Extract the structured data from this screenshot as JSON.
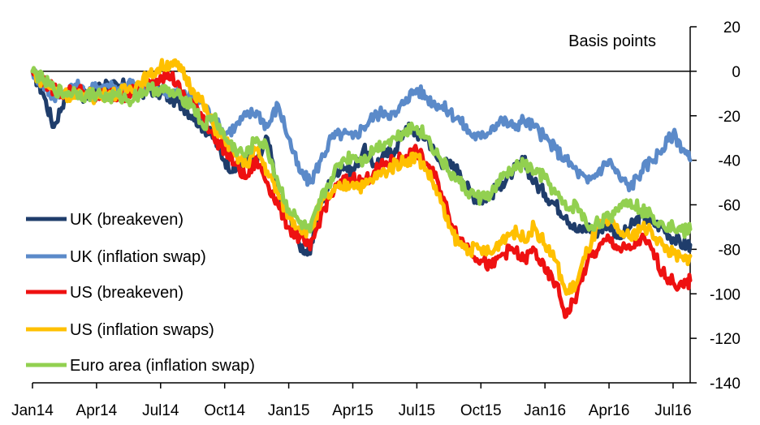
{
  "chart_data": {
    "type": "line",
    "title": "",
    "ylabel": "Basis points",
    "xlabel": "",
    "ylim": [
      -140,
      20
    ],
    "yticks": [
      20,
      0,
      -20,
      -40,
      -60,
      -80,
      -100,
      -120,
      -140
    ],
    "ytick_labels": [
      "20",
      "0",
      "-20",
      "-40",
      "-60",
      "-80",
      "-100",
      "-120",
      "-140"
    ],
    "xticks": [
      {
        "label": "Jan14",
        "t": 0
      },
      {
        "label": "Apr14",
        "t": 3
      },
      {
        "label": "Jul14",
        "t": 6
      },
      {
        "label": "Oct14",
        "t": 9
      },
      {
        "label": "Jan15",
        "t": 12
      },
      {
        "label": "Apr15",
        "t": 15
      },
      {
        "label": "Jul15",
        "t": 18
      },
      {
        "label": "Oct15",
        "t": 21
      },
      {
        "label": "Jan16",
        "t": 24
      },
      {
        "label": "Apr16",
        "t": 27
      },
      {
        "label": "Jul16",
        "t": 30
      }
    ],
    "xlim": [
      0,
      30.8
    ],
    "x_unit": "months since Jan 2014",
    "legend_position": "left",
    "series": [
      {
        "name": "UK (breakeven)",
        "color": "#1f3d6b",
        "points": [
          [
            0,
            0
          ],
          [
            0.5,
            -10
          ],
          [
            1,
            -25
          ],
          [
            1.5,
            -12
          ],
          [
            2,
            -8
          ],
          [
            2.5,
            -12
          ],
          [
            3,
            -8
          ],
          [
            3.5,
            -5
          ],
          [
            4,
            -8
          ],
          [
            4.5,
            -5
          ],
          [
            5,
            -10
          ],
          [
            5.5,
            -8
          ],
          [
            6,
            -10
          ],
          [
            6.5,
            -12
          ],
          [
            7,
            -15
          ],
          [
            7.5,
            -20
          ],
          [
            8,
            -25
          ],
          [
            8.5,
            -30
          ],
          [
            9,
            -40
          ],
          [
            9.5,
            -45
          ],
          [
            10,
            -38
          ],
          [
            10.5,
            -42
          ],
          [
            11,
            -30
          ],
          [
            11.5,
            -55
          ],
          [
            12,
            -65
          ],
          [
            12.5,
            -78
          ],
          [
            13,
            -82
          ],
          [
            13.5,
            -60
          ],
          [
            14,
            -48
          ],
          [
            14.5,
            -42
          ],
          [
            15,
            -45
          ],
          [
            15.5,
            -35
          ],
          [
            16,
            -42
          ],
          [
            16.5,
            -38
          ],
          [
            17,
            -35
          ],
          [
            17.5,
            -25
          ],
          [
            18,
            -28
          ],
          [
            18.5,
            -30
          ],
          [
            19,
            -40
          ],
          [
            19.5,
            -42
          ],
          [
            20,
            -45
          ],
          [
            20.5,
            -55
          ],
          [
            21,
            -58
          ],
          [
            21.5,
            -55
          ],
          [
            22,
            -50
          ],
          [
            22.5,
            -45
          ],
          [
            23,
            -40
          ],
          [
            23.5,
            -50
          ],
          [
            24,
            -55
          ],
          [
            24.5,
            -60
          ],
          [
            25,
            -65
          ],
          [
            25.5,
            -72
          ],
          [
            26,
            -70
          ],
          [
            26.5,
            -72
          ],
          [
            27,
            -68
          ],
          [
            27.5,
            -75
          ],
          [
            28,
            -70
          ],
          [
            28.5,
            -65
          ],
          [
            29,
            -68
          ],
          [
            29.5,
            -70
          ],
          [
            30,
            -75
          ],
          [
            30.5,
            -78
          ],
          [
            30.8,
            -78
          ]
        ]
      },
      {
        "name": "UK (inflation swap)",
        "color": "#5b8ac9",
        "points": [
          [
            0,
            0
          ],
          [
            0.5,
            -6
          ],
          [
            1,
            -12
          ],
          [
            1.5,
            -9
          ],
          [
            2,
            -6
          ],
          [
            2.5,
            -10
          ],
          [
            3,
            -7
          ],
          [
            3.5,
            -6
          ],
          [
            4,
            -8
          ],
          [
            4.5,
            -5
          ],
          [
            5,
            -8
          ],
          [
            5.5,
            -6
          ],
          [
            6,
            -8
          ],
          [
            6.5,
            -9
          ],
          [
            7,
            -10
          ],
          [
            7.5,
            -12
          ],
          [
            8,
            -15
          ],
          [
            8.5,
            -22
          ],
          [
            9,
            -28
          ],
          [
            9.5,
            -25
          ],
          [
            10,
            -20
          ],
          [
            10.5,
            -18
          ],
          [
            11,
            -25
          ],
          [
            11.5,
            -15
          ],
          [
            12,
            -30
          ],
          [
            12.5,
            -45
          ],
          [
            13,
            -50
          ],
          [
            13.5,
            -40
          ],
          [
            14,
            -30
          ],
          [
            14.5,
            -28
          ],
          [
            15,
            -30
          ],
          [
            15.5,
            -25
          ],
          [
            16,
            -20
          ],
          [
            16.5,
            -18
          ],
          [
            17,
            -20
          ],
          [
            17.5,
            -12
          ],
          [
            18,
            -8
          ],
          [
            18.5,
            -12
          ],
          [
            19,
            -15
          ],
          [
            19.5,
            -18
          ],
          [
            20,
            -22
          ],
          [
            20.5,
            -28
          ],
          [
            21,
            -30
          ],
          [
            21.5,
            -25
          ],
          [
            22,
            -22
          ],
          [
            22.5,
            -25
          ],
          [
            23,
            -22
          ],
          [
            23.5,
            -25
          ],
          [
            24,
            -30
          ],
          [
            24.5,
            -35
          ],
          [
            25,
            -40
          ],
          [
            25.5,
            -45
          ],
          [
            26,
            -50
          ],
          [
            26.5,
            -45
          ],
          [
            27,
            -40
          ],
          [
            27.5,
            -48
          ],
          [
            28,
            -52
          ],
          [
            28.5,
            -45
          ],
          [
            29,
            -40
          ],
          [
            29.5,
            -35
          ],
          [
            30,
            -28
          ],
          [
            30.5,
            -35
          ],
          [
            30.8,
            -40
          ]
        ]
      },
      {
        "name": "US (breakeven)",
        "color": "#ee1111",
        "points": [
          [
            0,
            0
          ],
          [
            0.5,
            -5
          ],
          [
            1,
            -8
          ],
          [
            1.5,
            -10
          ],
          [
            2,
            -8
          ],
          [
            2.5,
            -10
          ],
          [
            3,
            -12
          ],
          [
            3.5,
            -10
          ],
          [
            4,
            -12
          ],
          [
            4.5,
            -10
          ],
          [
            5,
            -8
          ],
          [
            5.5,
            -5
          ],
          [
            6,
            -2
          ],
          [
            6.5,
            -2
          ],
          [
            7,
            -10
          ],
          [
            7.5,
            -15
          ],
          [
            8,
            -20
          ],
          [
            8.5,
            -30
          ],
          [
            9,
            -35
          ],
          [
            9.5,
            -42
          ],
          [
            10,
            -48
          ],
          [
            10.5,
            -40
          ],
          [
            11,
            -50
          ],
          [
            11.5,
            -60
          ],
          [
            12,
            -70
          ],
          [
            12.5,
            -75
          ],
          [
            13,
            -80
          ],
          [
            13.5,
            -65
          ],
          [
            14,
            -55
          ],
          [
            14.5,
            -50
          ],
          [
            15,
            -48
          ],
          [
            15.5,
            -50
          ],
          [
            16,
            -45
          ],
          [
            16.5,
            -42
          ],
          [
            17,
            -40
          ],
          [
            17.5,
            -38
          ],
          [
            18,
            -36
          ],
          [
            18.5,
            -42
          ],
          [
            19,
            -50
          ],
          [
            19.5,
            -65
          ],
          [
            20,
            -75
          ],
          [
            20.5,
            -80
          ],
          [
            21,
            -85
          ],
          [
            21.5,
            -88
          ],
          [
            22,
            -82
          ],
          [
            22.5,
            -80
          ],
          [
            23,
            -85
          ],
          [
            23.5,
            -80
          ],
          [
            24,
            -90
          ],
          [
            24.5,
            -95
          ],
          [
            25,
            -110
          ],
          [
            25.5,
            -100
          ],
          [
            26,
            -85
          ],
          [
            26.5,
            -80
          ],
          [
            27,
            -75
          ],
          [
            27.5,
            -80
          ],
          [
            28,
            -80
          ],
          [
            28.5,
            -75
          ],
          [
            29,
            -80
          ],
          [
            29.5,
            -90
          ],
          [
            30,
            -95
          ],
          [
            30.5,
            -97
          ],
          [
            30.8,
            -94
          ]
        ]
      },
      {
        "name": "US (inflation swaps)",
        "color": "#ffc000",
        "points": [
          [
            0,
            0
          ],
          [
            0.5,
            -5
          ],
          [
            1,
            -8
          ],
          [
            1.5,
            -10
          ],
          [
            2,
            -12
          ],
          [
            2.5,
            -10
          ],
          [
            3,
            -12
          ],
          [
            3.5,
            -10
          ],
          [
            4,
            -10
          ],
          [
            4.5,
            -8
          ],
          [
            5,
            -5
          ],
          [
            5.5,
            -2
          ],
          [
            6,
            2
          ],
          [
            6.5,
            4
          ],
          [
            7,
            0
          ],
          [
            7.5,
            -8
          ],
          [
            8,
            -15
          ],
          [
            8.5,
            -25
          ],
          [
            9,
            -30
          ],
          [
            9.5,
            -38
          ],
          [
            10,
            -42
          ],
          [
            10.5,
            -35
          ],
          [
            11,
            -45
          ],
          [
            11.5,
            -55
          ],
          [
            12,
            -65
          ],
          [
            12.5,
            -70
          ],
          [
            13,
            -72
          ],
          [
            13.5,
            -60
          ],
          [
            14,
            -55
          ],
          [
            14.5,
            -52
          ],
          [
            15,
            -50
          ],
          [
            15.5,
            -52
          ],
          [
            16,
            -48
          ],
          [
            16.5,
            -45
          ],
          [
            17,
            -42
          ],
          [
            17.5,
            -40
          ],
          [
            18,
            -38
          ],
          [
            18.5,
            -45
          ],
          [
            19,
            -55
          ],
          [
            19.5,
            -70
          ],
          [
            20,
            -78
          ],
          [
            20.5,
            -80
          ],
          [
            21,
            -80
          ],
          [
            21.5,
            -82
          ],
          [
            22,
            -75
          ],
          [
            22.5,
            -72
          ],
          [
            23,
            -75
          ],
          [
            23.5,
            -70
          ],
          [
            24,
            -78
          ],
          [
            24.5,
            -85
          ],
          [
            25,
            -100
          ],
          [
            25.5,
            -95
          ],
          [
            26,
            -80
          ],
          [
            26.5,
            -70
          ],
          [
            27,
            -68
          ],
          [
            27.5,
            -72
          ],
          [
            28,
            -75
          ],
          [
            28.5,
            -70
          ],
          [
            29,
            -72
          ],
          [
            29.5,
            -78
          ],
          [
            30,
            -82
          ],
          [
            30.5,
            -85
          ],
          [
            30.8,
            -83
          ]
        ]
      },
      {
        "name": "Euro area (inflation swap)",
        "color": "#92d050",
        "points": [
          [
            0,
            0
          ],
          [
            0.5,
            -4
          ],
          [
            1,
            -8
          ],
          [
            1.5,
            -10
          ],
          [
            2,
            -9
          ],
          [
            2.5,
            -11
          ],
          [
            3,
            -10
          ],
          [
            3.5,
            -12
          ],
          [
            4,
            -11
          ],
          [
            4.5,
            -13
          ],
          [
            5,
            -10
          ],
          [
            5.5,
            -8
          ],
          [
            6,
            -8
          ],
          [
            6.5,
            -10
          ],
          [
            7,
            -12
          ],
          [
            7.5,
            -15
          ],
          [
            8,
            -25
          ],
          [
            8.5,
            -20
          ],
          [
            9,
            -30
          ],
          [
            9.5,
            -35
          ],
          [
            10,
            -38
          ],
          [
            10.5,
            -30
          ],
          [
            11,
            -35
          ],
          [
            11.5,
            -50
          ],
          [
            12,
            -62
          ],
          [
            12.5,
            -68
          ],
          [
            13,
            -72
          ],
          [
            13.5,
            -58
          ],
          [
            14,
            -48
          ],
          [
            14.5,
            -40
          ],
          [
            15,
            -38
          ],
          [
            15.5,
            -40
          ],
          [
            16,
            -35
          ],
          [
            16.5,
            -32
          ],
          [
            17,
            -30
          ],
          [
            17.5,
            -26
          ],
          [
            18,
            -25
          ],
          [
            18.5,
            -30
          ],
          [
            19,
            -38
          ],
          [
            19.5,
            -45
          ],
          [
            20,
            -50
          ],
          [
            20.5,
            -55
          ],
          [
            21,
            -57
          ],
          [
            21.5,
            -55
          ],
          [
            22,
            -48
          ],
          [
            22.5,
            -44
          ],
          [
            23,
            -42
          ],
          [
            23.5,
            -45
          ],
          [
            24,
            -48
          ],
          [
            24.5,
            -55
          ],
          [
            25,
            -62
          ],
          [
            25.5,
            -60
          ],
          [
            26,
            -70
          ],
          [
            26.5,
            -68
          ],
          [
            27,
            -66
          ],
          [
            27.5,
            -60
          ],
          [
            28,
            -58
          ],
          [
            28.5,
            -62
          ],
          [
            29,
            -65
          ],
          [
            29.5,
            -68
          ],
          [
            30,
            -70
          ],
          [
            30.5,
            -72
          ],
          [
            30.8,
            -71
          ]
        ]
      }
    ]
  }
}
